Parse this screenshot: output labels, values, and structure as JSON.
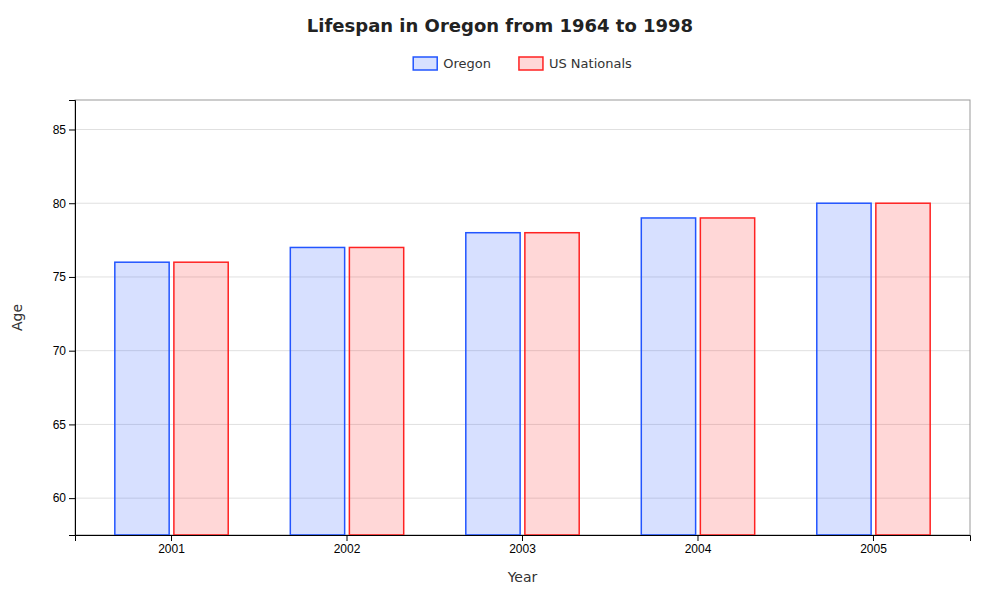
{
  "chart_data": {
    "type": "bar",
    "title": "Lifespan in Oregon from 1964 to 1998",
    "xlabel": "Year",
    "ylabel": "Age",
    "categories": [
      "2001",
      "2002",
      "2003",
      "2004",
      "2005"
    ],
    "series": [
      {
        "name": "Oregon",
        "color": "#2255ff",
        "values": [
          76,
          77,
          78,
          79,
          80
        ]
      },
      {
        "name": "US Nationals",
        "color": "#ff2222",
        "values": [
          76,
          77,
          78,
          79,
          80
        ]
      }
    ],
    "ylim": [
      57.5,
      87
    ],
    "yticks": [
      60,
      65,
      70,
      75,
      80,
      85
    ],
    "grid": true,
    "legend": "top"
  }
}
